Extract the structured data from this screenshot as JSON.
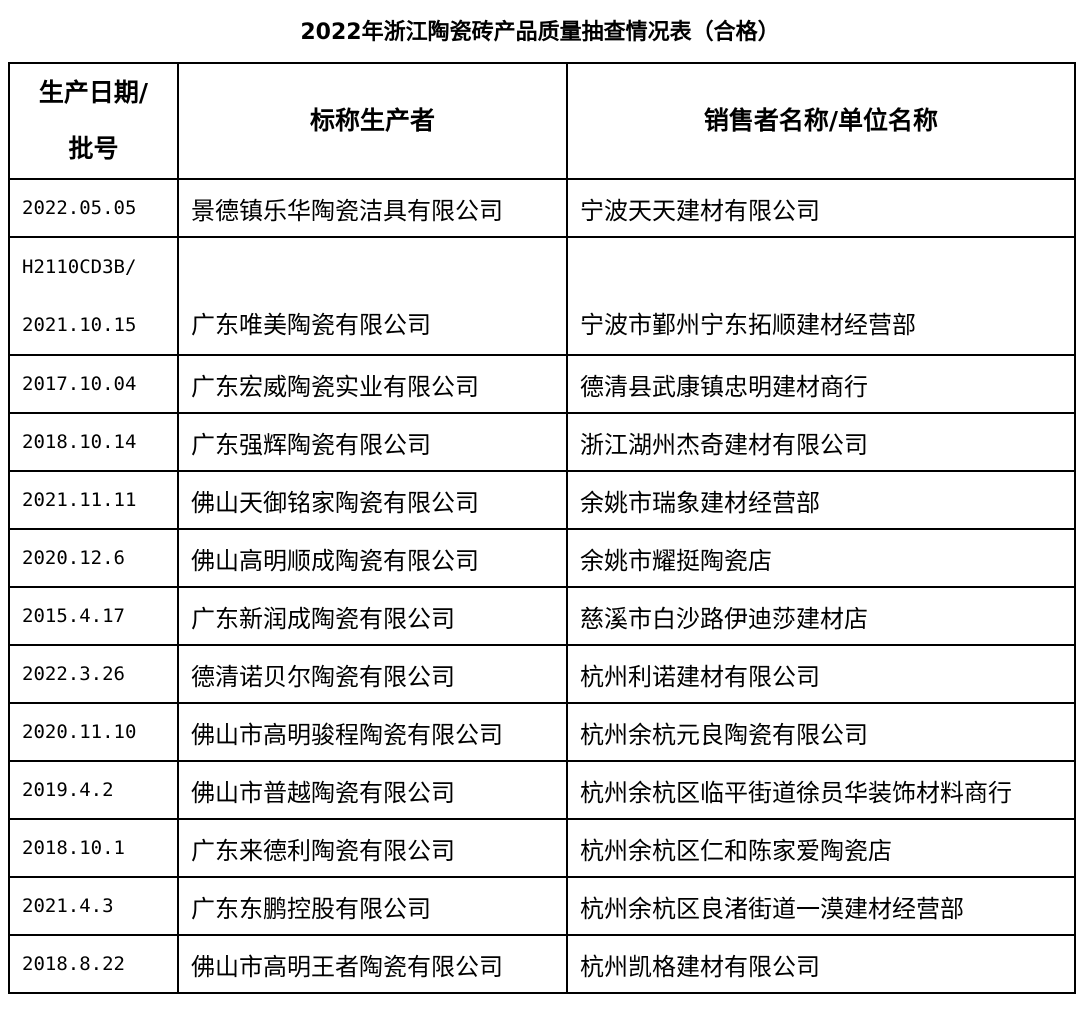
{
  "title": "2022年浙江陶瓷砖产品质量抽查情况表（合格）",
  "headers": {
    "date_line1": "生产日期/",
    "date_line2": "批号",
    "producer": "标称生产者",
    "seller": "销售者名称/单位名称"
  },
  "rows": [
    {
      "date": "2022.05.05",
      "producer": "景德镇乐华陶瓷洁具有限公司",
      "seller": "宁波天天建材有限公司"
    },
    {
      "batch": "H2110CD3B/",
      "date": "2021.10.15",
      "producer": "广东唯美陶瓷有限公司",
      "seller": "宁波市鄞州宁东拓顺建材经营部"
    },
    {
      "date": "2017.10.04",
      "producer": "广东宏威陶瓷实业有限公司",
      "seller": "德清县武康镇忠明建材商行"
    },
    {
      "date": "2018.10.14",
      "producer": "广东强辉陶瓷有限公司",
      "seller": "浙江湖州杰奇建材有限公司"
    },
    {
      "date": "2021.11.11",
      "producer": "佛山天御铭家陶瓷有限公司",
      "seller": "余姚市瑞象建材经营部"
    },
    {
      "date": "2020.12.6",
      "producer": "佛山高明顺成陶瓷有限公司",
      "seller": "余姚市耀挺陶瓷店"
    },
    {
      "date": "2015.4.17",
      "producer": "广东新润成陶瓷有限公司",
      "seller": "慈溪市白沙路伊迪莎建材店"
    },
    {
      "date": "2022.3.26",
      "producer": "德清诺贝尔陶瓷有限公司",
      "seller": "杭州利诺建材有限公司"
    },
    {
      "date": "2020.11.10",
      "producer": "佛山市高明骏程陶瓷有限公司",
      "seller": "杭州余杭元良陶瓷有限公司"
    },
    {
      "date": "2019.4.2",
      "producer": "佛山市普越陶瓷有限公司",
      "seller": "杭州余杭区临平街道徐员华装饰材料商行"
    },
    {
      "date": "2018.10.1",
      "producer": "广东来德利陶瓷有限公司",
      "seller": "杭州余杭区仁和陈家爱陶瓷店"
    },
    {
      "date": "2021.4.3",
      "producer": "广东东鹏控股有限公司",
      "seller": "杭州余杭区良渚街道一漠建材经营部"
    },
    {
      "date": "2018.8.22",
      "producer": "佛山市高明王者陶瓷有限公司",
      "seller": "杭州凯格建材有限公司"
    }
  ]
}
